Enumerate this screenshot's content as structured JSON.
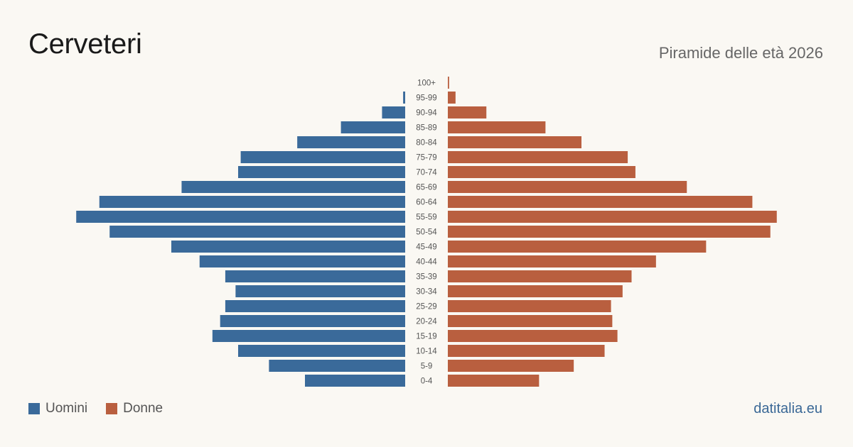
{
  "title": "Cerveteri",
  "subtitle": "Piramide delle età 2026",
  "source": "datitalia.eu",
  "colors": {
    "men": "#3a6a9a",
    "women": "#b95f3f",
    "background": "#faf8f3"
  },
  "legend": {
    "men": "Uomini",
    "women": "Donne"
  },
  "chart_data": {
    "type": "bar",
    "orientation": "horizontal-diverging",
    "categories": [
      "100+",
      "95-99",
      "90-94",
      "85-89",
      "80-84",
      "75-79",
      "70-74",
      "65-69",
      "60-64",
      "55-59",
      "50-54",
      "45-49",
      "40-44",
      "35-39",
      "30-34",
      "25-29",
      "20-24",
      "15-19",
      "10-14",
      "5-9",
      "0-4"
    ],
    "series": [
      {
        "name": "Uomini",
        "values": [
          0,
          8,
          90,
          250,
          420,
          640,
          650,
          870,
          1190,
          1280,
          1150,
          910,
          800,
          700,
          660,
          700,
          720,
          750,
          650,
          530,
          390
        ]
      },
      {
        "name": "Donne",
        "values": [
          5,
          30,
          150,
          380,
          520,
          700,
          730,
          930,
          1185,
          1280,
          1255,
          1005,
          810,
          715,
          680,
          635,
          640,
          660,
          610,
          490,
          355
        ]
      }
    ],
    "xlim": [
      0,
      1300
    ],
    "legend_position": "bottom-left",
    "grid": false
  }
}
